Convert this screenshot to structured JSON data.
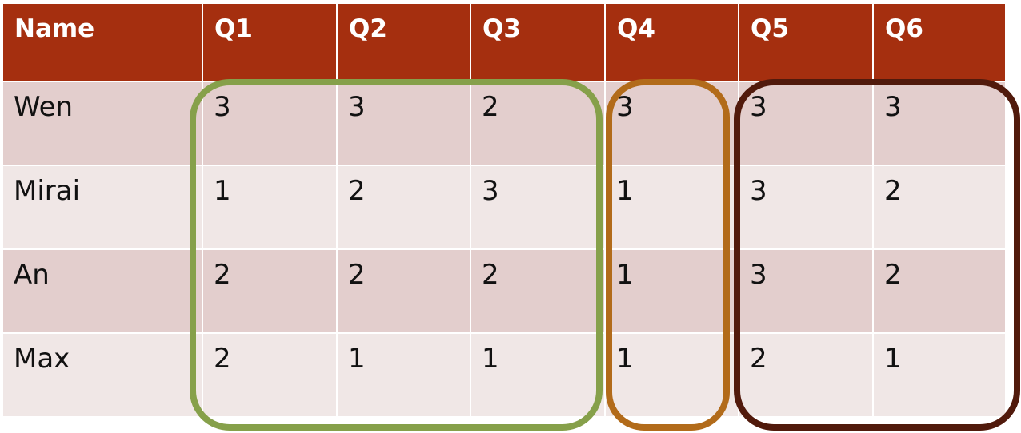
{
  "table": {
    "headers": [
      "Name",
      "Q1",
      "Q2",
      "Q3",
      "Q4",
      "Q5",
      "Q6"
    ],
    "rows": [
      {
        "name": "Wen",
        "scores": [
          "3",
          "3",
          "2",
          "3",
          "3",
          "3"
        ]
      },
      {
        "name": "Mirai",
        "scores": [
          "1",
          "2",
          "3",
          "1",
          "3",
          "2"
        ]
      },
      {
        "name": "An",
        "scores": [
          "2",
          "2",
          "2",
          "1",
          "3",
          "2"
        ]
      },
      {
        "name": "Max",
        "scores": [
          "2",
          "1",
          "1",
          "1",
          "2",
          "1"
        ]
      }
    ]
  },
  "colors": {
    "header_bg": "#a52f0f",
    "row_odd_bg": "#e3cecd",
    "row_even_bg": "#f0e7e6",
    "group_q1_q3_outline": "#86a04a",
    "group_q4_outline": "#b26b1a",
    "group_q5_q6_outline": "#511a0c"
  }
}
